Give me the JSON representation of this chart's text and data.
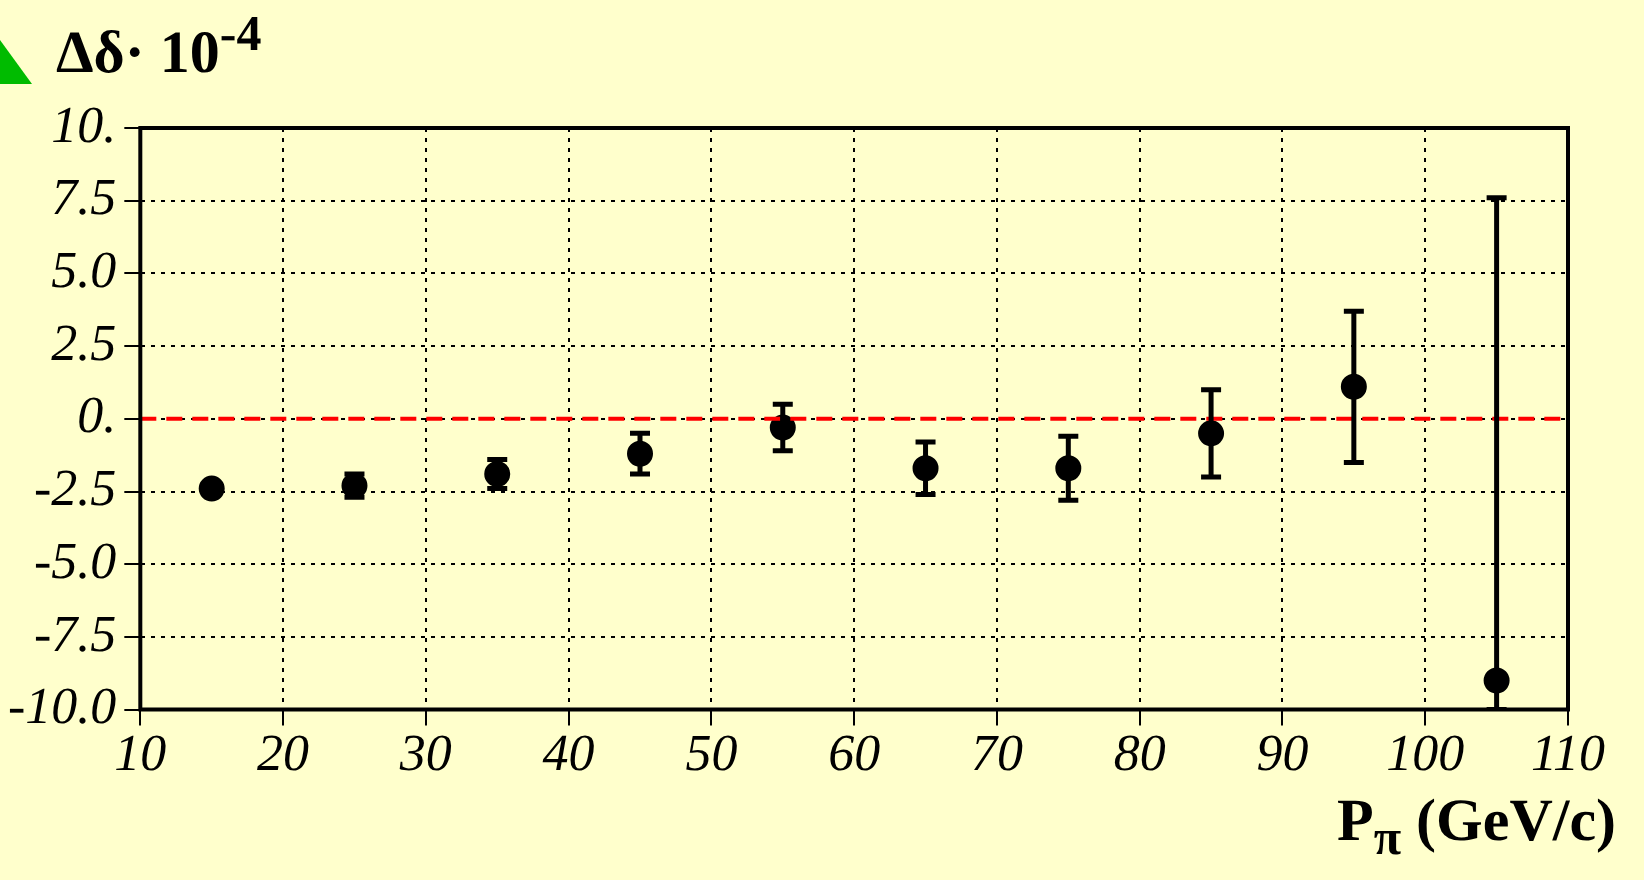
{
  "chart_data": {
    "type": "scatter",
    "ylabel": "Δδ· 10$^{-4}$",
    "xlabel": "P$_{π}$ (GeV/c)",
    "x": [
      15,
      25,
      35,
      45,
      55,
      65,
      75,
      85,
      95,
      105
    ],
    "series": [
      {
        "color": "#000000",
        "values": [
          -2.4,
          -2.3,
          -1.9,
          -1.2,
          -0.3,
          -1.7,
          -1.7,
          -0.5,
          1.1,
          -9.0
        ],
        "errors": [
          null,
          0.4,
          0.5,
          0.7,
          0.8,
          0.9,
          1.1,
          1.5,
          2.6,
          [
            -10,
            7.6
          ]
        ]
      }
    ],
    "xlim": [
      10,
      110
    ],
    "xticks": [
      10,
      20,
      30,
      40,
      50,
      60,
      70,
      80,
      90,
      100,
      110
    ],
    "ylim": [
      -10,
      10
    ],
    "yticks": [
      {
        "value": -10,
        "label": "-10.0"
      },
      -7.5,
      {
        "value": -5,
        "label": "-5.0"
      },
      -2.5,
      {
        "value": 0,
        "label": "0."
      },
      2.5,
      {
        "value": 5,
        "label": "5.0"
      },
      7.5,
      {
        "value": 10,
        "label": "10."
      }
    ],
    "ref_lines": [
      {
        "axis": "y",
        "value": 0,
        "color": "#ff0000",
        "line_style": "dashed"
      }
    ],
    "grid": true,
    "legend": false,
    "marker": "circle"
  }
}
